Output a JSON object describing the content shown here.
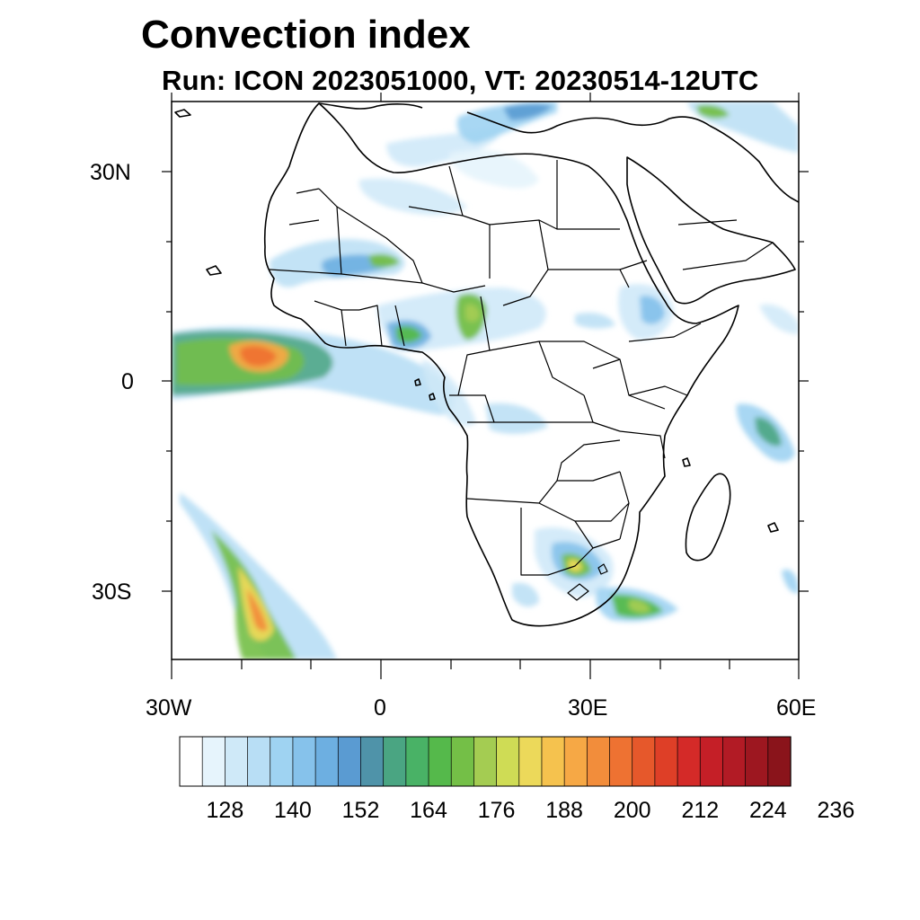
{
  "title": "Convection index",
  "subtitle": "Run: ICON 2023051000,  VT: 20230514-12UTC",
  "map": {
    "projection": "cylindrical-equidistant",
    "lon_range": [
      -30,
      60
    ],
    "lat_range": [
      -40,
      40
    ],
    "y_axis_labels": [
      "30N",
      "0",
      "30S"
    ],
    "x_axis_labels": [
      "30W",
      "0",
      "30E",
      "60E"
    ]
  },
  "colorbar": {
    "labels": [
      "128",
      "140",
      "152",
      "164",
      "176",
      "188",
      "200",
      "212",
      "224",
      "236"
    ],
    "colors": [
      "#ffffff",
      "#e6f4fc",
      "#cfe9f8",
      "#b8def5",
      "#9fd3f2",
      "#86c2eb",
      "#6dafe1",
      "#5a9bd2",
      "#4f93a9",
      "#4aa582",
      "#49b266",
      "#55b94b",
      "#74bf47",
      "#a4cc52",
      "#cfdc55",
      "#ecd95a",
      "#f5c24e",
      "#f6a845",
      "#f28d3b",
      "#ee7232",
      "#e6582b",
      "#de3f27",
      "#d42a28",
      "#c51f27",
      "#b21b25",
      "#9d1720",
      "#8a141b"
    ]
  },
  "icons": {
    "colorbar": "colorbar-icon"
  }
}
